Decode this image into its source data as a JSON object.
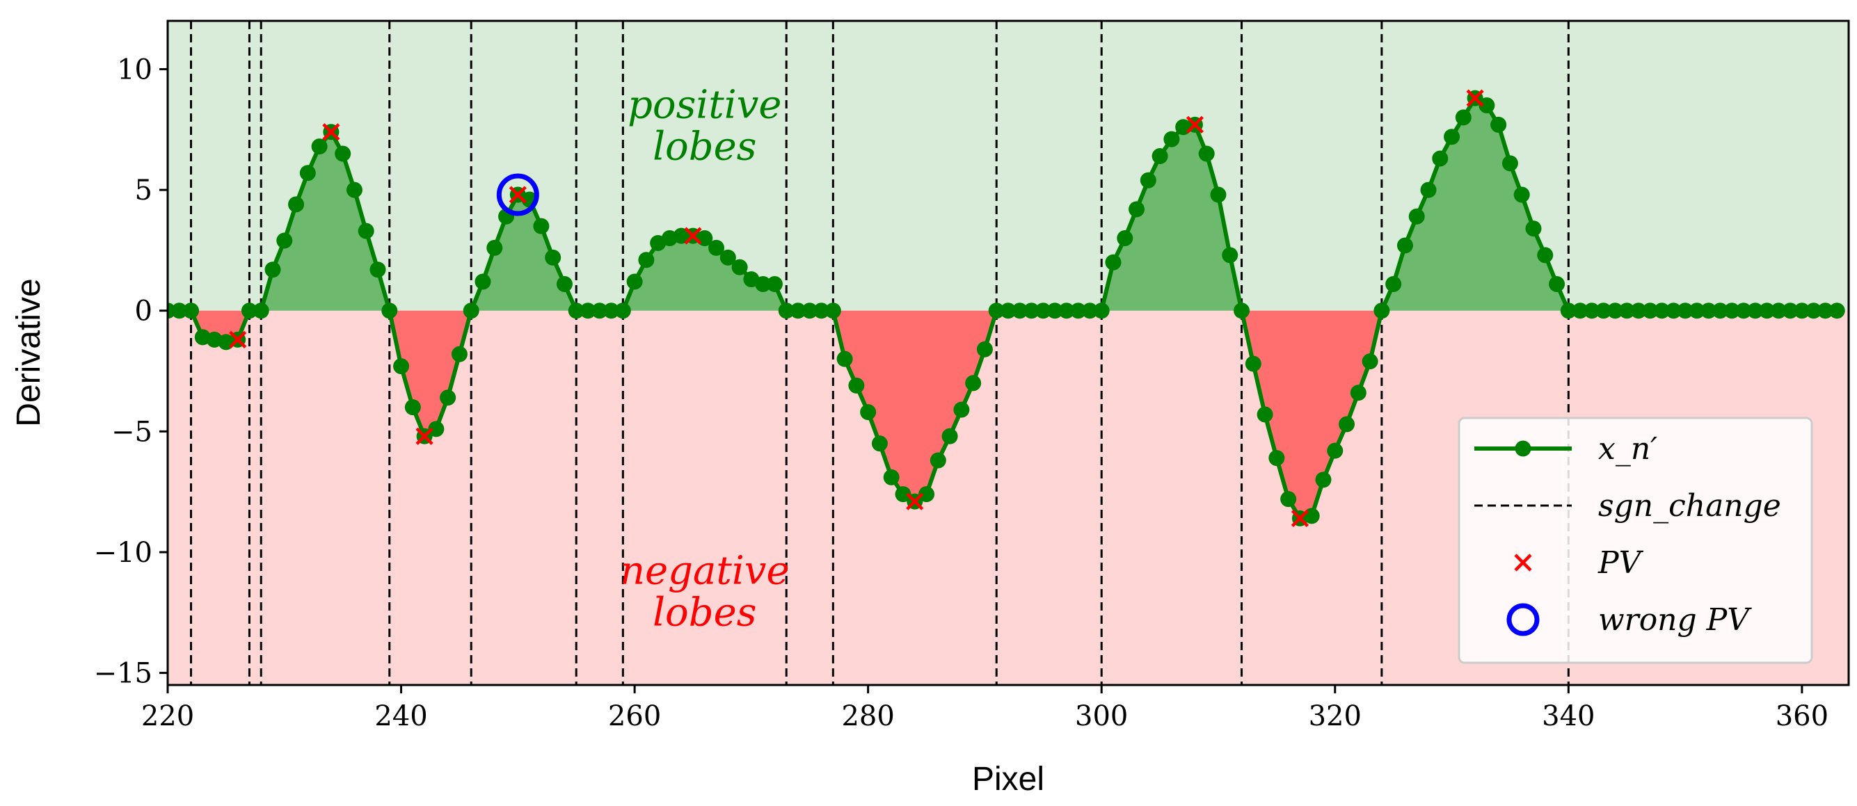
{
  "chart_data": {
    "type": "line",
    "title": "",
    "xlabel": "Pixel",
    "ylabel": "Derivative",
    "xlim": [
      220,
      364
    ],
    "ylim": [
      -15.5,
      12
    ],
    "grid": false,
    "x_ticks": [
      220,
      240,
      260,
      280,
      300,
      320,
      340,
      360
    ],
    "x_tick_labels": [
      "220",
      "240",
      "260",
      "280",
      "300",
      "320",
      "340",
      "360"
    ],
    "y_ticks": [
      10,
      5,
      0,
      -5,
      -10,
      -15
    ],
    "y_tick_labels": [
      "10",
      "5",
      "0",
      "−5",
      "−10",
      "−15"
    ],
    "regions": [
      {
        "name": "positive",
        "y_from": 0,
        "y_to": 12,
        "color": "#d9ecd9"
      },
      {
        "name": "negative",
        "y_from": -15.5,
        "y_to": 0,
        "color": "#ffd6d6"
      }
    ],
    "series": [
      {
        "name": "x_n'",
        "color": "#008000",
        "marker": "circle",
        "x": [
          220,
          221,
          222,
          223,
          224,
          225,
          226,
          227,
          228,
          229,
          230,
          231,
          232,
          233,
          234,
          235,
          236,
          237,
          238,
          239,
          240,
          241,
          242,
          243,
          244,
          245,
          246,
          247,
          248,
          249,
          250,
          251,
          252,
          253,
          254,
          255,
          256,
          257,
          258,
          259,
          260,
          261,
          262,
          263,
          264,
          265,
          266,
          267,
          268,
          269,
          270,
          271,
          272,
          273,
          274,
          275,
          276,
          277,
          278,
          279,
          280,
          281,
          282,
          283,
          284,
          285,
          286,
          287,
          288,
          289,
          290,
          291,
          292,
          293,
          294,
          295,
          296,
          297,
          298,
          299,
          300,
          301,
          302,
          303,
          304,
          305,
          306,
          307,
          308,
          309,
          310,
          311,
          312,
          313,
          314,
          315,
          316,
          317,
          318,
          319,
          320,
          321,
          322,
          323,
          324,
          325,
          326,
          327,
          328,
          329,
          330,
          331,
          332,
          333,
          334,
          335,
          336,
          337,
          338,
          339,
          340,
          341,
          342,
          343,
          344,
          345,
          346,
          347,
          348,
          349,
          350,
          351,
          352,
          353,
          354,
          355,
          356,
          357,
          358,
          359,
          360,
          361,
          362,
          363
        ],
        "y": [
          0,
          0,
          0,
          -1.1,
          -1.2,
          -1.3,
          -1.2,
          0,
          0,
          1.7,
          2.9,
          4.4,
          5.7,
          6.8,
          7.4,
          6.5,
          5.0,
          3.3,
          1.7,
          0,
          -2.3,
          -4.0,
          -5.2,
          -4.9,
          -3.6,
          -1.8,
          0,
          1.2,
          2.6,
          3.9,
          4.8,
          4.6,
          3.5,
          2.2,
          1.1,
          0,
          0,
          0,
          0,
          0,
          1.2,
          2.1,
          2.8,
          3.0,
          3.1,
          3.1,
          3.0,
          2.6,
          2.2,
          1.8,
          1.3,
          1.1,
          1.1,
          0,
          0,
          0,
          0,
          0,
          -2.0,
          -3.1,
          -4.2,
          -5.5,
          -6.9,
          -7.6,
          -7.9,
          -7.6,
          -6.2,
          -5.2,
          -4.1,
          -3.0,
          -1.6,
          0,
          0,
          0,
          0,
          0,
          0,
          0,
          0,
          0,
          0,
          2.0,
          3.0,
          4.2,
          5.4,
          6.4,
          7.1,
          7.6,
          7.7,
          6.5,
          4.8,
          2.3,
          0,
          -2.2,
          -4.3,
          -6.1,
          -7.8,
          -8.6,
          -8.5,
          -7.0,
          -5.8,
          -4.7,
          -3.4,
          -2.1,
          0,
          1.1,
          2.7,
          3.9,
          5.0,
          6.3,
          7.2,
          8.0,
          8.8,
          8.5,
          7.7,
          6.1,
          4.8,
          3.4,
          2.3,
          1.1,
          0,
          0,
          0,
          0,
          0,
          0,
          0,
          0,
          0,
          0,
          0,
          0,
          0,
          0,
          0,
          0,
          0,
          0,
          0,
          0,
          0,
          0,
          0,
          0
        ]
      }
    ],
    "sign_changes": [
      222,
      227,
      228,
      239,
      246,
      255,
      259,
      273,
      277,
      291,
      300,
      312,
      324,
      340
    ],
    "peak_values": [
      {
        "x": 226,
        "y": -1.2
      },
      {
        "x": 234,
        "y": 7.4
      },
      {
        "x": 242,
        "y": -5.2
      },
      {
        "x": 250,
        "y": 4.8
      },
      {
        "x": 265,
        "y": 3.1
      },
      {
        "x": 284,
        "y": -7.9
      },
      {
        "x": 308,
        "y": 7.7
      },
      {
        "x": 317,
        "y": -8.6
      },
      {
        "x": 332,
        "y": 8.8
      }
    ],
    "wrong_peak_values": [
      {
        "x": 250,
        "y": 4.8
      }
    ],
    "annotations": [
      {
        "lines": [
          "positive",
          "lobes"
        ],
        "x": 266,
        "y": 7.7,
        "color": "#008000"
      },
      {
        "lines": [
          "negative",
          "lobes"
        ],
        "x": 266,
        "y": -11.6,
        "color": "#ff0000"
      }
    ],
    "legend": {
      "position": "bottom-right",
      "entries": [
        {
          "label": "x_n′",
          "kind": "line-marker",
          "color": "#008000"
        },
        {
          "label": "sgn_change",
          "kind": "dashed",
          "color": "#000000"
        },
        {
          "label": "PV",
          "kind": "x",
          "color": "#ff0000"
        },
        {
          "label": "wrong PV",
          "kind": "circle",
          "color": "#0000ff"
        }
      ]
    }
  }
}
